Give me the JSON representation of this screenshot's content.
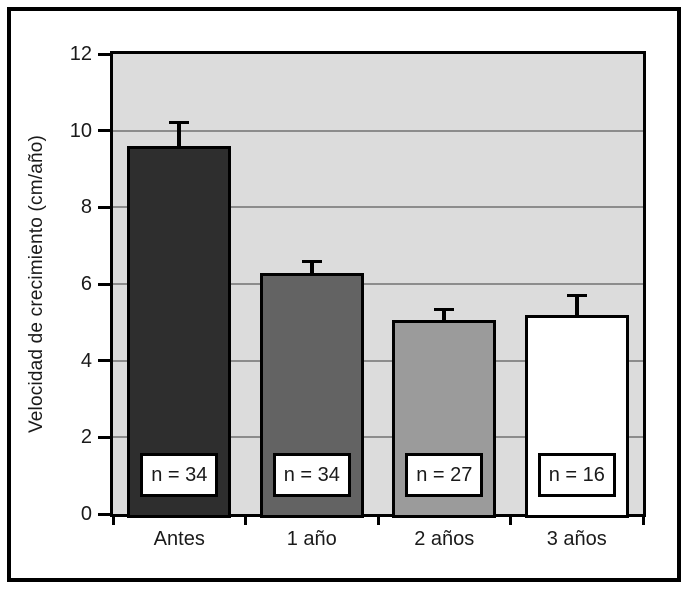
{
  "figure": {
    "background": "#ffffff",
    "frame_color": "#000000"
  },
  "chart_data": {
    "type": "bar",
    "title": "",
    "categories": [
      "Antes",
      "1 año",
      "2 años",
      "3 años"
    ],
    "values": [
      9.6,
      6.3,
      5.05,
      5.2
    ],
    "errors": [
      0.6,
      0.28,
      0.27,
      0.5
    ],
    "error_direction": "upper-only",
    "bar_labels": [
      "n = 34",
      "n = 34",
      "n = 27",
      "n = 16"
    ],
    "bar_colors": [
      "#2e2e2e",
      "#636363",
      "#9b9b9b",
      "#ffffff"
    ],
    "bar_border_color": "#000000",
    "error_bar_color": "#000000",
    "xlabel": "",
    "ylabel": "Velocidad de crecimiento (cm/año)",
    "ylim": [
      0,
      12
    ],
    "yticks": [
      0,
      2,
      4,
      6,
      8,
      10,
      12
    ],
    "grid": true,
    "gridline_color": "#8c8c8c",
    "plot_background": "#dcdcdc",
    "legend": "none"
  }
}
